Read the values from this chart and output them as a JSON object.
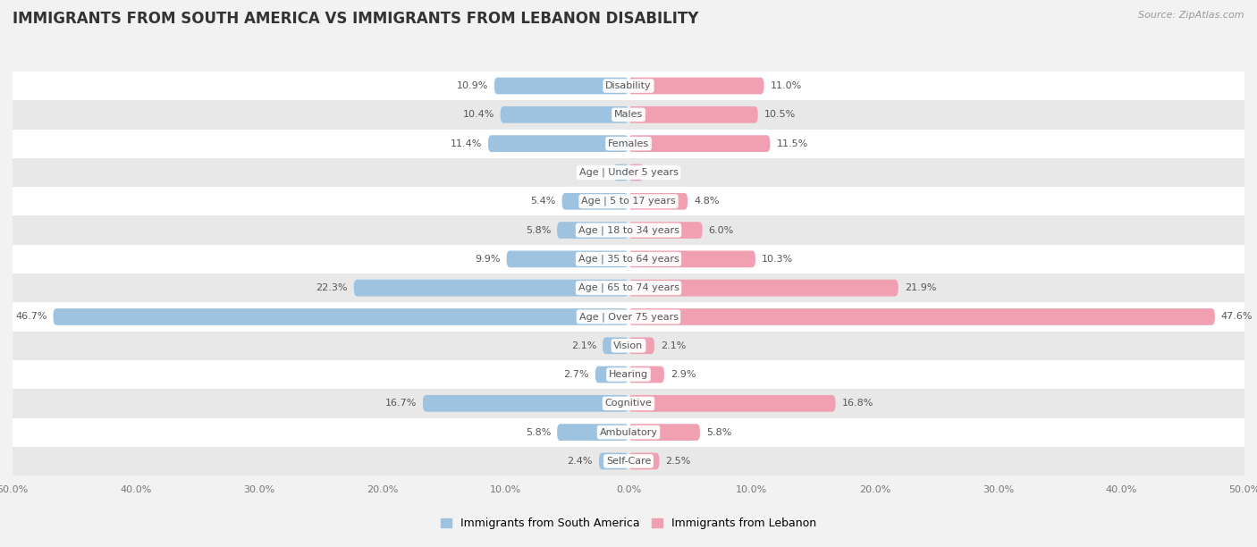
{
  "title": "IMMIGRANTS FROM SOUTH AMERICA VS IMMIGRANTS FROM LEBANON DISABILITY",
  "source": "Source: ZipAtlas.com",
  "categories": [
    "Disability",
    "Males",
    "Females",
    "Age | Under 5 years",
    "Age | 5 to 17 years",
    "Age | 18 to 34 years",
    "Age | 35 to 64 years",
    "Age | 65 to 74 years",
    "Age | Over 75 years",
    "Vision",
    "Hearing",
    "Cognitive",
    "Ambulatory",
    "Self-Care"
  ],
  "left_values": [
    10.9,
    10.4,
    11.4,
    1.2,
    5.4,
    5.8,
    9.9,
    22.3,
    46.7,
    2.1,
    2.7,
    16.7,
    5.8,
    2.4
  ],
  "right_values": [
    11.0,
    10.5,
    11.5,
    1.2,
    4.8,
    6.0,
    10.3,
    21.9,
    47.6,
    2.1,
    2.9,
    16.8,
    5.8,
    2.5
  ],
  "left_color": "#9dc3e0",
  "right_color": "#f0a0b0",
  "max_value": 50.0,
  "bar_height": 0.58,
  "bg_color": "#f2f2f2",
  "row_colors": [
    "#ffffff",
    "#e8e8e8"
  ],
  "left_label": "Immigrants from South America",
  "right_label": "Immigrants from Lebanon",
  "title_fontsize": 12,
  "source_fontsize": 8,
  "legend_fontsize": 9,
  "value_fontsize": 8,
  "category_fontsize": 8
}
